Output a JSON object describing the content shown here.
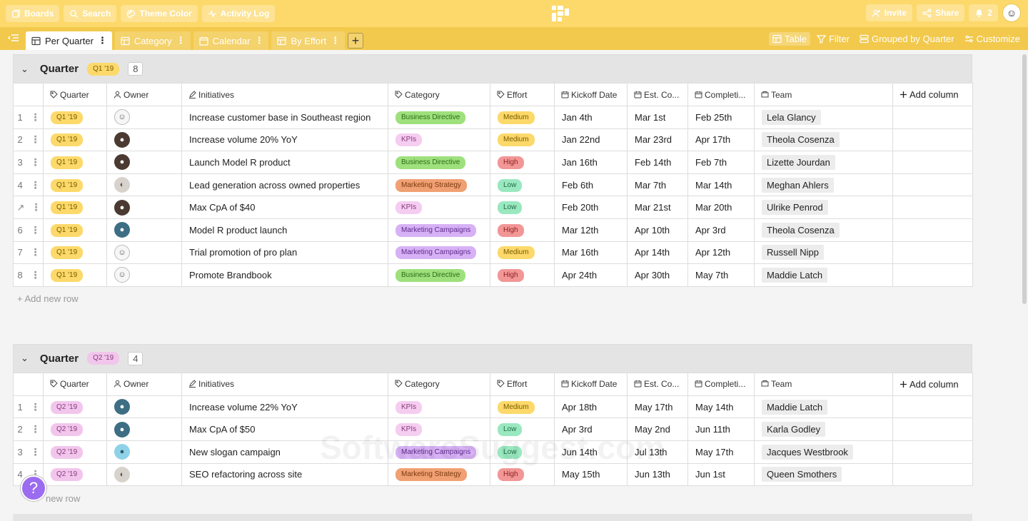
{
  "topbar": {
    "boards": "Boards",
    "search": "Search",
    "theme_color": "Theme Color",
    "activity_log": "Activity Log",
    "invite": "Invite",
    "share": "Share",
    "notifications": "2"
  },
  "views": {
    "tabs": [
      "Per Quarter",
      "Category",
      "Calendar",
      "By Effort"
    ],
    "active": "Per Quarter",
    "table": "Table",
    "filter": "Filter",
    "grouped": "Grouped by Quarter",
    "customize": "Customize"
  },
  "columns": [
    "Quarter",
    "Owner",
    "Initiatives",
    "Category",
    "Effort",
    "Kickoff Date",
    "Est. Co...",
    "Completi...",
    "Team",
    "Add column"
  ],
  "groups": [
    {
      "title": "Quarter",
      "badge": "Q1 '19",
      "count": "8",
      "rows": [
        {
          "n": "1",
          "quarter": "Q1 '19",
          "owner": "sketch",
          "initiative": "Increase customer base in Southeast region",
          "category": "Business Directive",
          "effort": "Medium",
          "kickoff": "Jan 4th",
          "est": "Mar 1st",
          "completion": "Feb 25th",
          "team": "Lela Glancy"
        },
        {
          "n": "2",
          "quarter": "Q1 '19",
          "owner": "dark",
          "initiative": "Increase volume 20% YoY",
          "category": "KPIs",
          "effort": "Medium",
          "kickoff": "Jan 22nd",
          "est": "Mar 23rd",
          "completion": "Apr 17th",
          "team": "Theola Cosenza"
        },
        {
          "n": "3",
          "quarter": "Q1 '19",
          "owner": "dark",
          "initiative": "Launch Model R product",
          "category": "Business Directive",
          "effort": "High",
          "kickoff": "Jan 16th",
          "est": "Feb 14th",
          "completion": "Feb 7th",
          "team": "Lizette Jourdan"
        },
        {
          "n": "4",
          "quarter": "Q1 '19",
          "owner": "light",
          "initiative": "Lead generation across owned properties",
          "category": "Marketing Strategy",
          "effort": "Low",
          "kickoff": "Feb 6th",
          "est": "Mar 7th",
          "completion": "Mar 14th",
          "team": "Meghan Ahlers"
        },
        {
          "n": "",
          "quarter": "Q1 '19",
          "owner": "dark",
          "initiative": "Max CpA of $40",
          "category": "KPIs",
          "effort": "Low",
          "kickoff": "Feb 20th",
          "est": "Mar 21st",
          "completion": "Mar 20th",
          "team": "Ulrike Penrod"
        },
        {
          "n": "6",
          "quarter": "Q1 '19",
          "owner": "blue",
          "initiative": "Model R product launch",
          "category": "Marketing Campaigns",
          "effort": "High",
          "kickoff": "Mar 12th",
          "est": "Apr 10th",
          "completion": "Apr 3rd",
          "team": "Theola Cosenza"
        },
        {
          "n": "7",
          "quarter": "Q1 '19",
          "owner": "sketch",
          "initiative": "Trial promotion of pro plan",
          "category": "Marketing Campaigns",
          "effort": "Medium",
          "kickoff": "Mar 16th",
          "est": "Apr 14th",
          "completion": "Apr 12th",
          "team": "Russell Nipp"
        },
        {
          "n": "8",
          "quarter": "Q1 '19",
          "owner": "sketch",
          "initiative": "Promote Brandbook",
          "category": "Business Directive",
          "effort": "High",
          "kickoff": "Apr 24th",
          "est": "Apr 30th",
          "completion": "May 7th",
          "team": "Maddie Latch"
        }
      ]
    },
    {
      "title": "Quarter",
      "badge": "Q2 '19",
      "count": "4",
      "rows": [
        {
          "n": "1",
          "quarter": "Q2 '19",
          "owner": "blue",
          "initiative": "Increase volume 22% YoY",
          "category": "KPIs",
          "effort": "Medium",
          "kickoff": "Apr 18th",
          "est": "May 17th",
          "completion": "May 14th",
          "team": "Maddie Latch"
        },
        {
          "n": "2",
          "quarter": "Q2 '19",
          "owner": "blue",
          "initiative": "Max CpA of $50",
          "category": "KPIs",
          "effort": "Low",
          "kickoff": "Apr 3rd",
          "est": "May 2nd",
          "completion": "Jun 11th",
          "team": "Karla Godley"
        },
        {
          "n": "3",
          "quarter": "Q2 '19",
          "owner": "cyan",
          "initiative": "New slogan campaign",
          "category": "Marketing Campaigns",
          "effort": "Low",
          "kickoff": "Jun 14th",
          "est": "Jul 13th",
          "completion": "May 17th",
          "team": "Jacques Westbrook"
        },
        {
          "n": "4",
          "quarter": "Q2 '19",
          "owner": "light",
          "initiative": "SEO refactoring across site",
          "category": "Marketing Strategy",
          "effort": "High",
          "kickoff": "May 15th",
          "est": "Jun 13th",
          "completion": "Jun 1st",
          "team": "Queen Smothers"
        }
      ]
    }
  ],
  "add_row": "+ Add new row",
  "add_row_partial": "new row",
  "help": "?",
  "watermark": "SoftwareSuggest.com"
}
